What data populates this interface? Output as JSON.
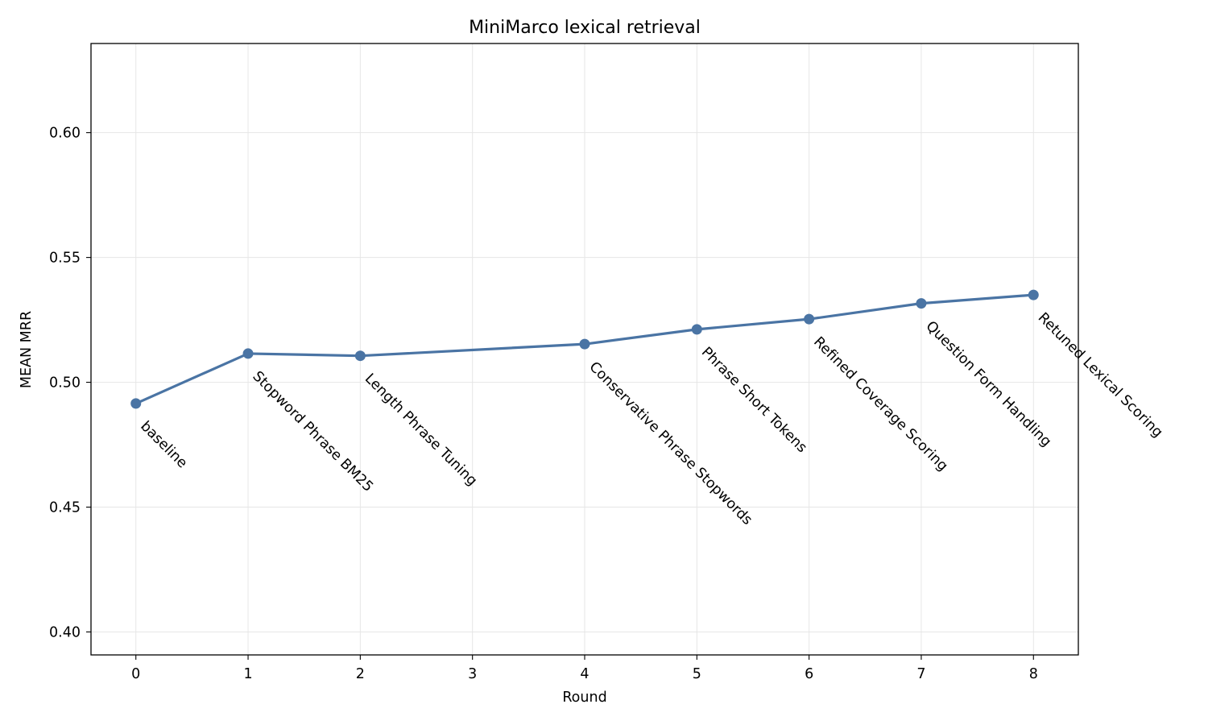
{
  "chart_data": {
    "type": "line",
    "title": "MiniMarco lexical retrieval",
    "xlabel": "Round",
    "ylabel": "MEAN MRR",
    "xlim": [
      -0.4,
      8.4
    ],
    "ylim": [
      0.3908,
      0.6357
    ],
    "x_ticks": [
      0,
      1,
      2,
      3,
      4,
      5,
      6,
      7,
      8
    ],
    "x_tick_labels": [
      "0",
      "1",
      "2",
      "3",
      "4",
      "5",
      "6",
      "7",
      "8"
    ],
    "y_ticks": [
      0.4,
      0.45,
      0.5,
      0.55,
      0.6
    ],
    "y_tick_labels": [
      "0.40",
      "0.45",
      "0.50",
      "0.55",
      "0.60"
    ],
    "grid": true,
    "series": [
      {
        "color": "#4a74a4",
        "marker": "circle",
        "points": [
          {
            "x": 0,
            "y": 0.4915,
            "label": "baseline"
          },
          {
            "x": 1,
            "y": 0.5115,
            "label": "Stopword Phrase BM25"
          },
          {
            "x": 2,
            "y": 0.5106,
            "label": "Length Phrase Tuning"
          },
          {
            "x": 4,
            "y": 0.5153,
            "label": "Conservative Phrase Stopwords"
          },
          {
            "x": 5,
            "y": 0.5212,
            "label": "Phrase Short Tokens"
          },
          {
            "x": 6,
            "y": 0.5253,
            "label": "Refined Coverage Scoring"
          },
          {
            "x": 7,
            "y": 0.5316,
            "label": "Question Form Handling"
          },
          {
            "x": 8,
            "y": 0.535,
            "label": "Retuned Lexical Scoring"
          }
        ]
      }
    ]
  }
}
